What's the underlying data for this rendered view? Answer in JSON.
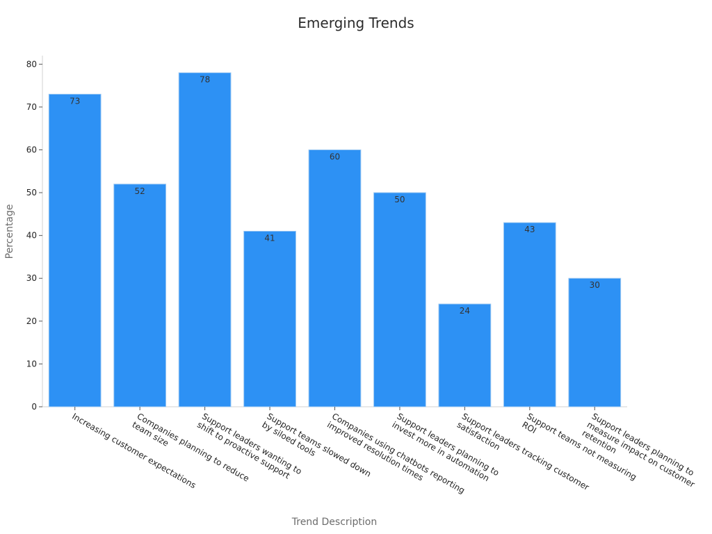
{
  "chart_data": {
    "type": "bar",
    "title": "Emerging Trends",
    "xlabel": "Trend Description",
    "ylabel": "Percentage",
    "ylim": [
      0,
      82
    ],
    "yticks": [
      0,
      10,
      20,
      30,
      40,
      50,
      60,
      70,
      80
    ],
    "grid": false,
    "bar_color": "#2d91f4",
    "categories": [
      [
        "Increasing customer expectations"
      ],
      [
        "Companies planning to reduce",
        "team size"
      ],
      [
        "Support leaders wanting to",
        "shift to proactive support"
      ],
      [
        "Support teams slowed down",
        "by siloed tools"
      ],
      [
        "Companies using chatbots reporting",
        "improved resolution times"
      ],
      [
        "Support leaders planning to",
        "invest more in automation"
      ],
      [
        "Support leaders tracking customer",
        "satisfaction"
      ],
      [
        "Support teams not measuring",
        "ROI"
      ],
      [
        "Support leaders planning to",
        "measure impact on customer",
        "retention"
      ]
    ],
    "values": [
      73,
      52,
      78,
      41,
      60,
      50,
      24,
      43,
      30
    ]
  }
}
